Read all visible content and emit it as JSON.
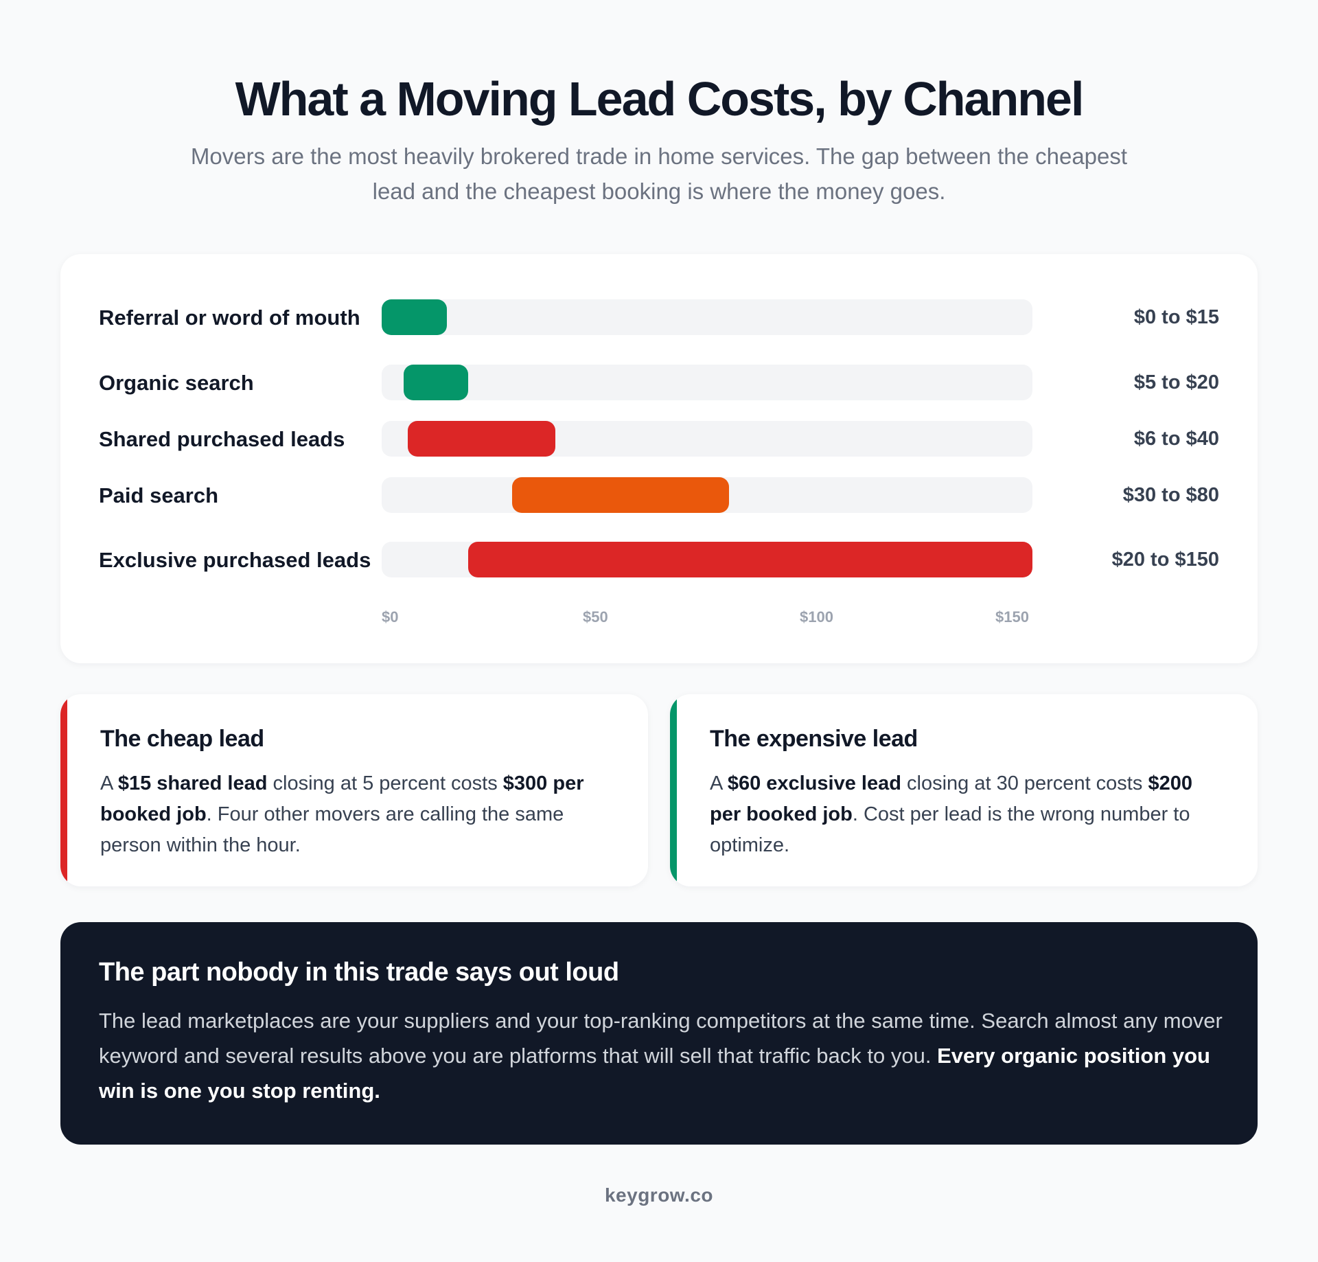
{
  "header": {
    "title": "What a Moving Lead Costs, by Channel",
    "subtitle": "Movers are the most heavily brokered trade in home services. The gap between the cheapest lead and the cheapest booking is where the money goes."
  },
  "colors": {
    "green": "#059669",
    "red": "#dc2626",
    "orange": "#ea580c",
    "track": "#f3f4f6",
    "dark": "#111827"
  },
  "chart_data": {
    "type": "bar",
    "orientation": "horizontal-range",
    "xlim": [
      0,
      150
    ],
    "ticks": [
      "$0",
      "$50",
      "$100",
      "$150"
    ],
    "tick_values": [
      0,
      50,
      100,
      150
    ],
    "grid": false,
    "rows": [
      {
        "label": "Referral or word of mouth",
        "min": 0,
        "max": 15,
        "range_label": "$0 to $15",
        "color": "#059669"
      },
      {
        "label": "Organic search",
        "min": 5,
        "max": 20,
        "range_label": "$5 to $20",
        "color": "#059669"
      },
      {
        "label": "Shared purchased leads",
        "min": 6,
        "max": 40,
        "range_label": "$6 to $40",
        "color": "#dc2626"
      },
      {
        "label": "Paid search",
        "min": 30,
        "max": 80,
        "range_label": "$30 to $80",
        "color": "#ea580c"
      },
      {
        "label": "Exclusive purchased leads",
        "min": 20,
        "max": 150,
        "range_label": "$20 to $150",
        "color": "#dc2626"
      }
    ]
  },
  "notes": [
    {
      "title": "The cheap lead",
      "accent": "#dc2626",
      "p1": "A ",
      "b1": "$15 shared lead",
      "p2": " closing at 5 percent costs ",
      "b2": "$300 per booked job",
      "p3": ". Four other movers are calling the same person within the hour."
    },
    {
      "title": "The expensive lead",
      "accent": "#059669",
      "p1": "A ",
      "b1": "$60 exclusive lead",
      "p2": " closing at 30 percent costs ",
      "b2": "$200 per booked job",
      "p3": ". Cost per lead is the wrong number to optimize."
    }
  ],
  "callout": {
    "title": "The part nobody in this trade says out loud",
    "body": "The lead marketplaces are your suppliers and your top-ranking competitors at the same time. Search almost any mover keyword and several results above you are platforms that will sell that traffic back to you. ",
    "emphasis": "Every organic position you win is one you stop renting."
  },
  "footer": {
    "brand": "keygrow.co"
  }
}
